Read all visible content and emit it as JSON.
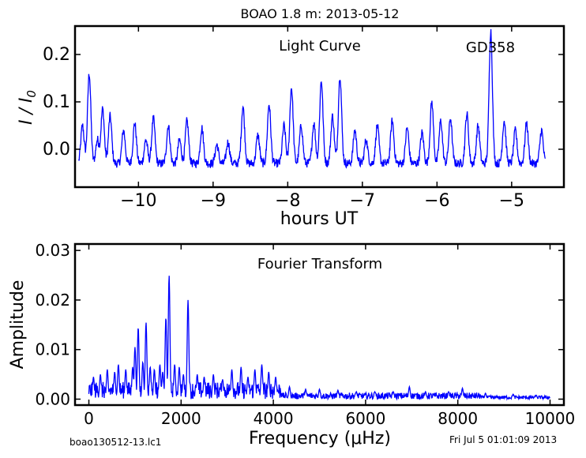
{
  "title": "BOAO 1.8 m:  2013-05-12",
  "footer_left": "boao130512-13.lc1",
  "footer_right": "Fri Jul  5 01:01:09 2013",
  "chart_data": [
    {
      "type": "line",
      "annotation": "Light Curve",
      "object_label": "GD358",
      "xlabel": "hours UT",
      "ylabel": "I / I0",
      "xlim": [
        -10.85,
        -4.3
      ],
      "ylim": [
        -0.08,
        0.26
      ],
      "xticks": [
        -10,
        -9,
        -8,
        -7,
        -6,
        -5
      ],
      "yticks": [
        0.0,
        0.1,
        0.2
      ],
      "xtick_labels": [
        "−10",
        "−9",
        "−8",
        "−7",
        "−6",
        "−5"
      ],
      "ytick_labels": [
        "0.0",
        "0.1",
        "0.2"
      ],
      "line_color": "#0000ff",
      "x_start": -10.8,
      "x_end": -4.55,
      "baseline": -0.03,
      "noise": 0.009,
      "peaks": [
        {
          "x": -10.75,
          "y": 0.05
        },
        {
          "x": -10.66,
          "y": 0.16
        },
        {
          "x": -10.55,
          "y": 0.02
        },
        {
          "x": -10.48,
          "y": 0.085
        },
        {
          "x": -10.38,
          "y": 0.07
        },
        {
          "x": -10.2,
          "y": 0.04
        },
        {
          "x": -10.05,
          "y": 0.055
        },
        {
          "x": -9.9,
          "y": 0.02
        },
        {
          "x": -9.8,
          "y": 0.065
        },
        {
          "x": -9.6,
          "y": 0.05
        },
        {
          "x": -9.45,
          "y": 0.02
        },
        {
          "x": -9.35,
          "y": 0.06
        },
        {
          "x": -9.15,
          "y": 0.045
        },
        {
          "x": -8.95,
          "y": 0.01
        },
        {
          "x": -8.8,
          "y": 0.015
        },
        {
          "x": -8.6,
          "y": 0.09
        },
        {
          "x": -8.4,
          "y": 0.03
        },
        {
          "x": -8.25,
          "y": 0.095
        },
        {
          "x": -8.05,
          "y": 0.05
        },
        {
          "x": -7.95,
          "y": 0.13
        },
        {
          "x": -7.82,
          "y": 0.05
        },
        {
          "x": -7.65,
          "y": 0.055
        },
        {
          "x": -7.55,
          "y": 0.145
        },
        {
          "x": -7.4,
          "y": 0.07
        },
        {
          "x": -7.3,
          "y": 0.155
        },
        {
          "x": -7.1,
          "y": 0.04
        },
        {
          "x": -6.95,
          "y": 0.02
        },
        {
          "x": -6.8,
          "y": 0.05
        },
        {
          "x": -6.6,
          "y": 0.06
        },
        {
          "x": -6.4,
          "y": 0.045
        },
        {
          "x": -6.2,
          "y": 0.035
        },
        {
          "x": -6.07,
          "y": 0.1
        },
        {
          "x": -5.95,
          "y": 0.06
        },
        {
          "x": -5.82,
          "y": 0.065
        },
        {
          "x": -5.6,
          "y": 0.075
        },
        {
          "x": -5.45,
          "y": 0.05
        },
        {
          "x": -5.28,
          "y": 0.25
        },
        {
          "x": -5.1,
          "y": 0.06
        },
        {
          "x": -4.95,
          "y": 0.04
        },
        {
          "x": -4.8,
          "y": 0.055
        },
        {
          "x": -4.6,
          "y": 0.04
        }
      ]
    },
    {
      "type": "line",
      "annotation": "Fourier Transform",
      "xlabel": "Frequency (μHz)",
      "ylabel": "Amplitude",
      "xlim": [
        -300,
        10300
      ],
      "ylim": [
        -0.0012,
        0.0313
      ],
      "xticks": [
        0,
        2000,
        4000,
        6000,
        8000,
        10000
      ],
      "yticks": [
        0.0,
        0.01,
        0.02,
        0.03
      ],
      "xtick_labels": [
        "0",
        "2000",
        "4000",
        "6000",
        "8000",
        "10000"
      ],
      "ytick_labels": [
        "0.00",
        "0.01",
        "0.02",
        "0.03"
      ],
      "line_color": "#0000ff",
      "x_start": 0,
      "x_end": 10000,
      "peaks": [
        {
          "x": 100,
          "y": 0.0045
        },
        {
          "x": 250,
          "y": 0.005
        },
        {
          "x": 400,
          "y": 0.006
        },
        {
          "x": 560,
          "y": 0.0055
        },
        {
          "x": 640,
          "y": 0.007
        },
        {
          "x": 800,
          "y": 0.006
        },
        {
          "x": 950,
          "y": 0.0065
        },
        {
          "x": 1000,
          "y": 0.0105
        },
        {
          "x": 1070,
          "y": 0.0145
        },
        {
          "x": 1170,
          "y": 0.0075
        },
        {
          "x": 1240,
          "y": 0.0155
        },
        {
          "x": 1330,
          "y": 0.0065
        },
        {
          "x": 1420,
          "y": 0.006
        },
        {
          "x": 1540,
          "y": 0.007
        },
        {
          "x": 1600,
          "y": 0.0055
        },
        {
          "x": 1670,
          "y": 0.0165
        },
        {
          "x": 1740,
          "y": 0.025
        },
        {
          "x": 1860,
          "y": 0.007
        },
        {
          "x": 1960,
          "y": 0.0065
        },
        {
          "x": 2050,
          "y": 0.005
        },
        {
          "x": 2150,
          "y": 0.02
        },
        {
          "x": 2350,
          "y": 0.005
        },
        {
          "x": 2500,
          "y": 0.0045
        },
        {
          "x": 2700,
          "y": 0.005
        },
        {
          "x": 2900,
          "y": 0.004
        },
        {
          "x": 3100,
          "y": 0.006
        },
        {
          "x": 3300,
          "y": 0.0065
        },
        {
          "x": 3450,
          "y": 0.0045
        },
        {
          "x": 3600,
          "y": 0.006
        },
        {
          "x": 3750,
          "y": 0.007
        },
        {
          "x": 3900,
          "y": 0.0055
        },
        {
          "x": 4050,
          "y": 0.0045
        },
        {
          "x": 4350,
          "y": 0.0025
        },
        {
          "x": 4700,
          "y": 0.002
        },
        {
          "x": 5000,
          "y": 0.002
        },
        {
          "x": 5400,
          "y": 0.0018
        },
        {
          "x": 5800,
          "y": 0.0015
        },
        {
          "x": 6200,
          "y": 0.0015
        },
        {
          "x": 6600,
          "y": 0.0015
        },
        {
          "x": 6950,
          "y": 0.0025
        },
        {
          "x": 7300,
          "y": 0.0015
        },
        {
          "x": 7800,
          "y": 0.0015
        },
        {
          "x": 8100,
          "y": 0.0022
        },
        {
          "x": 8600,
          "y": 0.0012
        },
        {
          "x": 9200,
          "y": 0.001
        },
        {
          "x": 9700,
          "y": 0.0008
        }
      ]
    }
  ]
}
